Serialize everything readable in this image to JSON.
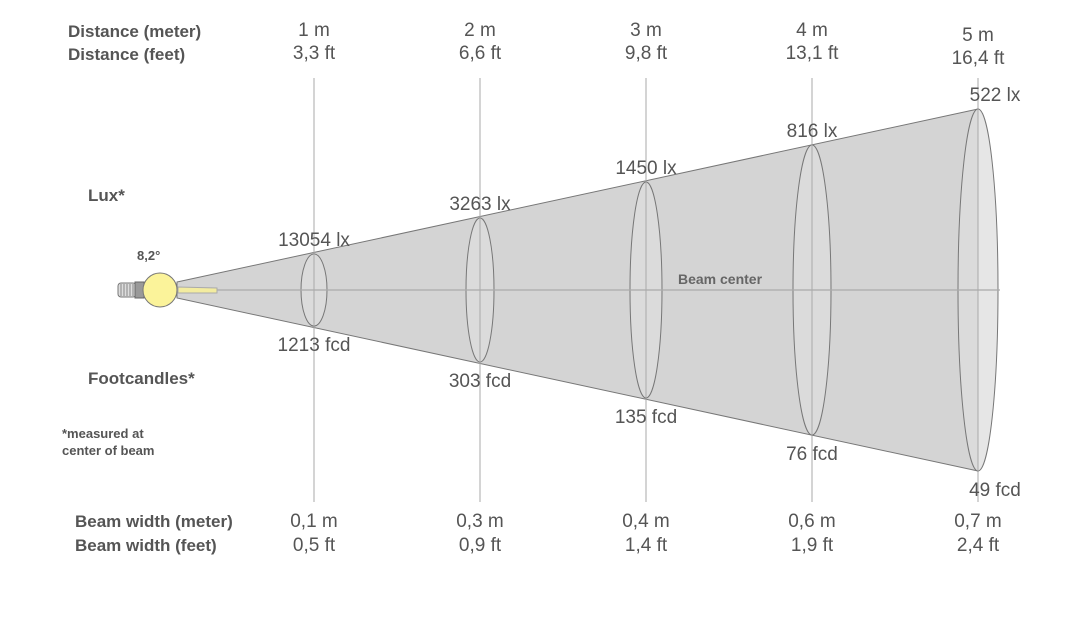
{
  "labels": {
    "distance_meter": "Distance (meter)",
    "distance_feet": "Distance (feet)",
    "lux": "Lux*",
    "footcandles": "Footcandles*",
    "note_line1": "*measured at",
    "note_line2": "center of beam",
    "beam_width_meter": "Beam width (meter)",
    "beam_width_feet": "Beam width (feet)",
    "beam_center": "Beam center",
    "beam_angle": "8,2°"
  },
  "points": [
    {
      "distance_m": "1 m",
      "distance_ft": "3,3 ft",
      "lux": "13054 lx",
      "fcd": "1213 fcd",
      "width_m": "0,1 m",
      "width_ft": "0,5 ft"
    },
    {
      "distance_m": "2 m",
      "distance_ft": "6,6 ft",
      "lux": "3263 lx",
      "fcd": "303 fcd",
      "width_m": "0,3 m",
      "width_ft": "0,9 ft"
    },
    {
      "distance_m": "3 m",
      "distance_ft": "9,8 ft",
      "lux": "1450 lx",
      "fcd": "135 fcd",
      "width_m": "0,4 m",
      "width_ft": "1,4 ft"
    },
    {
      "distance_m": "4 m",
      "distance_ft": "13,1 ft",
      "lux": "816 lx",
      "fcd": "76 fcd",
      "width_m": "0,6 m",
      "width_ft": "1,9 ft"
    },
    {
      "distance_m": "5 m",
      "distance_ft": "16,4 ft",
      "lux": "522 lx",
      "fcd": "49 fcd",
      "width_m": "0,7 m",
      "width_ft": "2,4 ft"
    }
  ],
  "colors": {
    "beam": "#d4d4d4",
    "ellipse": "#dedede",
    "bulb": "#fbf39a",
    "text": "#555555",
    "line": "#aaaaaa"
  }
}
